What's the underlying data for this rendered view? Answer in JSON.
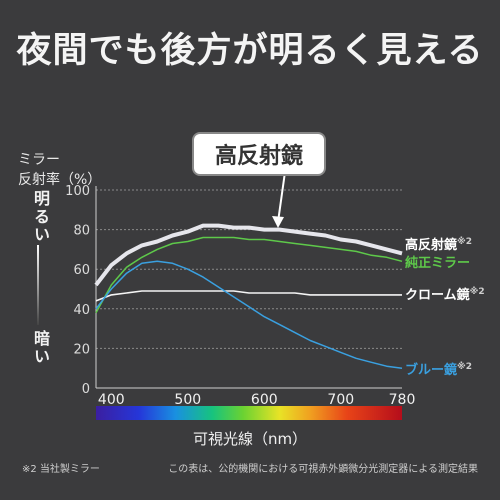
{
  "headline": "夜間でも後方が明るく見える",
  "y_axis_label_line1": "ミラー",
  "y_axis_label_line2": "反射率（%）",
  "bright_label": "明るい",
  "dark_label": "暗い",
  "callout_label": "高反射鏡",
  "x_axis_label": "可視光線（nm）",
  "footnote_left": "※2 当社製ミラー",
  "footnote_right": "この表は、公的機関における可視赤外顕微分光測定器による測定結果",
  "colors": {
    "background": "#3b3b3d",
    "high": "#e6e6ec",
    "green": "#5ec94a",
    "chrome": "#f5f5f5",
    "blue": "#3aa0e0"
  },
  "chart_data": {
    "type": "line",
    "xlabel": "可視光線（nm）",
    "ylabel": "反射率（%）",
    "xlim": [
      380,
      780
    ],
    "ylim": [
      0,
      100
    ],
    "x_ticks": [
      "400",
      "500",
      "600",
      "700",
      "780"
    ],
    "y_ticks": [
      "0",
      "20",
      "40",
      "60",
      "80",
      "100"
    ],
    "grid": true,
    "series": [
      {
        "name": "高反射鏡",
        "note": "※2",
        "color": "#e6e6ec",
        "x": [
          380,
          400,
          420,
          440,
          460,
          480,
          500,
          520,
          540,
          560,
          580,
          600,
          620,
          640,
          660,
          680,
          700,
          720,
          740,
          760,
          780
        ],
        "y": [
          52,
          62,
          68,
          72,
          74,
          77,
          79,
          82,
          82,
          81,
          81,
          80,
          80,
          79,
          78,
          77,
          75,
          74,
          72,
          70,
          68
        ]
      },
      {
        "name": "純正ミラー",
        "note": "",
        "color": "#5ec94a",
        "x": [
          380,
          400,
          420,
          440,
          460,
          480,
          500,
          520,
          540,
          560,
          580,
          600,
          620,
          640,
          660,
          680,
          700,
          720,
          740,
          760,
          780
        ],
        "y": [
          38,
          52,
          61,
          66,
          70,
          73,
          74,
          76,
          76,
          76,
          75,
          75,
          74,
          73,
          72,
          71,
          70,
          69,
          67,
          66,
          64
        ]
      },
      {
        "name": "クローム鏡",
        "note": "※2",
        "color": "#f5f5f5",
        "x": [
          380,
          400,
          420,
          440,
          460,
          480,
          500,
          520,
          540,
          560,
          580,
          600,
          620,
          640,
          660,
          680,
          700,
          720,
          740,
          760,
          780
        ],
        "y": [
          44,
          47,
          48,
          49,
          49,
          49,
          49,
          49,
          49,
          49,
          48,
          48,
          48,
          48,
          47,
          47,
          47,
          47,
          47,
          47,
          47
        ]
      },
      {
        "name": "ブルー鏡",
        "note": "※2",
        "color": "#3aa0e0",
        "x": [
          380,
          400,
          420,
          440,
          460,
          480,
          500,
          520,
          540,
          560,
          580,
          600,
          620,
          640,
          660,
          680,
          700,
          720,
          740,
          760,
          780
        ],
        "y": [
          40,
          50,
          58,
          63,
          64,
          63,
          60,
          56,
          51,
          46,
          41,
          36,
          32,
          28,
          24,
          21,
          18,
          15,
          13,
          11,
          10
        ]
      }
    ]
  }
}
